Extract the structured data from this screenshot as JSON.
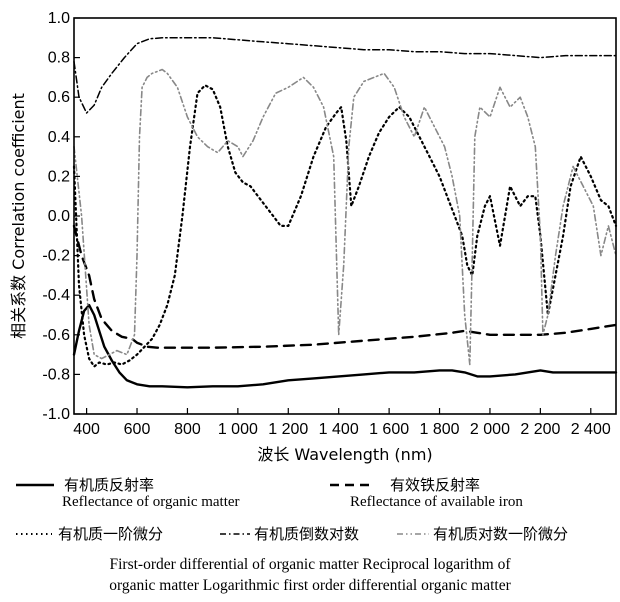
{
  "chart_data": {
    "type": "line",
    "xlabel": "波长 Wavelength (nm)",
    "ylabel": "相关系数 Correlation coefficient",
    "xlim": [
      350,
      2500
    ],
    "ylim": [
      -1.0,
      1.0
    ],
    "x_ticks": [
      400,
      600,
      800,
      1000,
      1200,
      1400,
      1600,
      1800,
      2000,
      2200,
      2400
    ],
    "x_tick_labels": [
      "400",
      "600",
      "800",
      "1 000",
      "1 200",
      "1 400",
      "1 600",
      "1 800",
      "2 000",
      "2 200",
      "2 400"
    ],
    "y_ticks": [
      -1.0,
      -0.8,
      -0.6,
      -0.4,
      -0.2,
      0.0,
      0.2,
      0.4,
      0.6,
      0.8,
      1.0
    ],
    "y_tick_labels": [
      "-1.0",
      "-0.8",
      "-0.6",
      "-0.4",
      "-0.2",
      "0.0",
      "0.2",
      "0.4",
      "0.6",
      "0.8",
      "1.0"
    ],
    "grid": false,
    "legend_placement": "bottom",
    "series": [
      {
        "name": "有机质反射率",
        "name_en": "Reflectance of organic matter",
        "style": "solid",
        "color": "#000000",
        "x": [
          350,
          370,
          390,
          410,
          430,
          450,
          470,
          500,
          530,
          560,
          600,
          650,
          700,
          800,
          900,
          1000,
          1100,
          1200,
          1300,
          1400,
          1500,
          1600,
          1700,
          1800,
          1850,
          1900,
          1950,
          2000,
          2100,
          2150,
          2200,
          2250,
          2300,
          2400,
          2500
        ],
        "y": [
          -0.7,
          -0.58,
          -0.48,
          -0.45,
          -0.5,
          -0.58,
          -0.66,
          -0.73,
          -0.79,
          -0.83,
          -0.85,
          -0.86,
          -0.86,
          -0.865,
          -0.86,
          -0.86,
          -0.85,
          -0.83,
          -0.82,
          -0.81,
          -0.8,
          -0.79,
          -0.79,
          -0.78,
          -0.78,
          -0.79,
          -0.81,
          -0.81,
          -0.8,
          -0.79,
          -0.78,
          -0.79,
          -0.79,
          -0.79,
          -0.79
        ]
      },
      {
        "name": "有效铁反射率",
        "name_en": "Reflectance of available iron",
        "style": "dash",
        "color": "#000000",
        "x": [
          350,
          380,
          410,
          430,
          460,
          500,
          540,
          580,
          600,
          640,
          680,
          750,
          900,
          1100,
          1300,
          1500,
          1700,
          1850,
          1900,
          1950,
          2000,
          2100,
          2200,
          2300,
          2400,
          2500
        ],
        "y": [
          -0.05,
          -0.2,
          -0.3,
          -0.42,
          -0.52,
          -0.58,
          -0.61,
          -0.62,
          -0.64,
          -0.66,
          -0.665,
          -0.665,
          -0.665,
          -0.66,
          -0.65,
          -0.63,
          -0.61,
          -0.59,
          -0.58,
          -0.59,
          -0.6,
          -0.6,
          -0.6,
          -0.59,
          -0.57,
          -0.55
        ]
      },
      {
        "name": "有机质一阶微分",
        "name_en": "First-order differential of organic matter",
        "style": "dot",
        "color": "#000000",
        "x": [
          350,
          370,
          390,
          410,
          430,
          450,
          480,
          510,
          540,
          570,
          600,
          630,
          660,
          690,
          720,
          750,
          780,
          810,
          840,
          870,
          900,
          930,
          960,
          990,
          1020,
          1050,
          1080,
          1110,
          1140,
          1170,
          1200,
          1250,
          1300,
          1350,
          1390,
          1410,
          1430,
          1450,
          1480,
          1520,
          1560,
          1600,
          1640,
          1680,
          1720,
          1760,
          1800,
          1830,
          1860,
          1890,
          1910,
          1930,
          1950,
          1980,
          2000,
          2040,
          2080,
          2120,
          2150,
          2180,
          2200,
          2230,
          2260,
          2290,
          2320,
          2360,
          2400,
          2440,
          2470,
          2500
        ],
        "y": [
          0.25,
          -0.35,
          -0.6,
          -0.72,
          -0.76,
          -0.74,
          -0.75,
          -0.74,
          -0.75,
          -0.73,
          -0.7,
          -0.66,
          -0.62,
          -0.55,
          -0.45,
          -0.3,
          0.0,
          0.35,
          0.62,
          0.66,
          0.64,
          0.55,
          0.35,
          0.22,
          0.17,
          0.15,
          0.1,
          0.05,
          0.0,
          -0.05,
          -0.05,
          0.1,
          0.3,
          0.45,
          0.52,
          0.55,
          0.38,
          0.05,
          0.15,
          0.3,
          0.42,
          0.5,
          0.55,
          0.5,
          0.4,
          0.3,
          0.2,
          0.1,
          0.0,
          -0.1,
          -0.25,
          -0.3,
          -0.1,
          0.05,
          0.1,
          -0.15,
          0.15,
          0.05,
          0.1,
          0.1,
          -0.1,
          -0.5,
          -0.3,
          -0.1,
          0.15,
          0.3,
          0.2,
          0.08,
          0.05,
          -0.05
        ]
      },
      {
        "name": "有机质倒数对数",
        "name_en": "Reciprocal logarithm of organic matter",
        "style": "dashdot",
        "color": "#000000",
        "x": [
          350,
          370,
          400,
          430,
          460,
          500,
          550,
          600,
          650,
          700,
          800,
          900,
          1000,
          1100,
          1200,
          1300,
          1400,
          1500,
          1600,
          1700,
          1800,
          1900,
          2000,
          2100,
          2200,
          2300,
          2400,
          2500
        ],
        "y": [
          0.78,
          0.6,
          0.52,
          0.56,
          0.65,
          0.72,
          0.8,
          0.87,
          0.895,
          0.9,
          0.9,
          0.9,
          0.89,
          0.88,
          0.87,
          0.86,
          0.85,
          0.84,
          0.84,
          0.83,
          0.83,
          0.82,
          0.82,
          0.81,
          0.8,
          0.81,
          0.81,
          0.81
        ]
      },
      {
        "name": "有机质对数一阶微分",
        "name_en": "Logarithmic first order differential organic matter",
        "style": "dashdotdot",
        "color": "#888888",
        "x": [
          350,
          380,
          410,
          430,
          460,
          490,
          520,
          560,
          590,
          600,
          610,
          620,
          640,
          660,
          680,
          700,
          720,
          760,
          800,
          840,
          880,
          920,
          960,
          1000,
          1020,
          1060,
          1100,
          1150,
          1200,
          1260,
          1300,
          1340,
          1380,
          1400,
          1420,
          1440,
          1460,
          1500,
          1540,
          1580,
          1620,
          1660,
          1700,
          1740,
          1780,
          1820,
          1850,
          1880,
          1900,
          1920,
          1930,
          1940,
          1960,
          2000,
          2040,
          2080,
          2120,
          2150,
          2180,
          2200,
          2210,
          2230,
          2260,
          2290,
          2330,
          2370,
          2410,
          2440,
          2470,
          2500
        ],
        "y": [
          0.35,
          0.0,
          -0.55,
          -0.7,
          -0.72,
          -0.7,
          -0.68,
          -0.7,
          -0.6,
          -0.2,
          0.4,
          0.65,
          0.7,
          0.72,
          0.73,
          0.74,
          0.72,
          0.65,
          0.5,
          0.4,
          0.35,
          0.32,
          0.38,
          0.35,
          0.3,
          0.38,
          0.5,
          0.62,
          0.65,
          0.7,
          0.65,
          0.55,
          0.3,
          -0.6,
          -0.25,
          0.35,
          0.6,
          0.68,
          0.7,
          0.72,
          0.65,
          0.5,
          0.4,
          0.55,
          0.45,
          0.35,
          0.2,
          0.0,
          -0.5,
          -0.75,
          -0.2,
          0.4,
          0.55,
          0.5,
          0.65,
          0.55,
          0.6,
          0.5,
          0.35,
          -0.1,
          -0.6,
          -0.5,
          -0.2,
          0.05,
          0.25,
          0.15,
          0.05,
          -0.2,
          -0.05,
          -0.2
        ]
      }
    ]
  },
  "legend": {
    "entries": [
      {
        "zh": "有机质反射率",
        "en": "Reflectance of organic matter"
      },
      {
        "zh": "有效铁反射率",
        "en": "Reflectance of available iron"
      },
      {
        "zh": "有机质一阶微分"
      },
      {
        "zh": "有机质倒数对数"
      },
      {
        "zh": "有机质对数一阶微分"
      }
    ],
    "caption_line1": "First-order differential of organic matter Reciprocal logarithm of",
    "caption_line2": "organic matter Logarithmic first order differential organic matter"
  }
}
